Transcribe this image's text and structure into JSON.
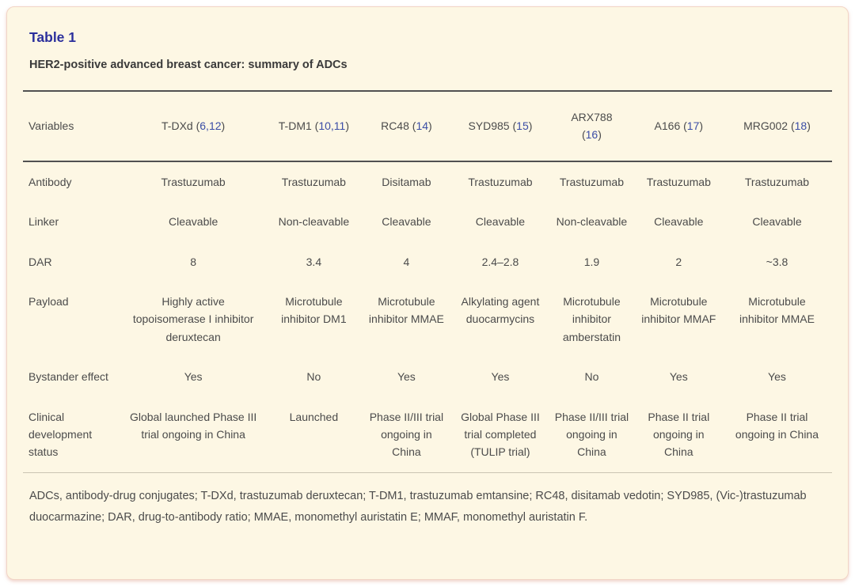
{
  "card": {
    "title": "Table 1",
    "subtitle": "HER2-positive advanced breast cancer: summary of ADCs",
    "footnote": "ADCs, antibody-drug conjugates; T-DXd, trastuzumab deruxtecan; T-DM1, trastuzumab emtansine; RC48, disitamab vedotin; SYD985, (Vic-)trastuzumab duocarmazine; DAR, drug-to-antibody ratio; MMAE, monomethyl auristatin E; MMAF, monomethyl auristatin F."
  },
  "colors": {
    "card_bg": "#fdf7e4",
    "card_border": "#f2d5c6",
    "title": "#2b2f9c",
    "link": "#3a4da6",
    "text": "#4b4b4b",
    "rule_dark": "#515151",
    "rule_light": "#cac4b3"
  },
  "table": {
    "header": [
      {
        "name": "Variables",
        "parts": [
          {
            "t": "Variables"
          }
        ]
      },
      {
        "name": "T-DXd",
        "parts": [
          {
            "t": "T-DXd ("
          },
          {
            "t": "6,12",
            "link": true
          },
          {
            "t": ")"
          }
        ]
      },
      {
        "name": "T-DM1",
        "parts": [
          {
            "t": "T-DM1 ("
          },
          {
            "t": "10,11",
            "link": true
          },
          {
            "t": ")"
          }
        ]
      },
      {
        "name": "RC48",
        "parts": [
          {
            "t": "RC48 ("
          },
          {
            "t": "14",
            "link": true
          },
          {
            "t": ")"
          }
        ]
      },
      {
        "name": "SYD985",
        "parts": [
          {
            "t": "SYD985 ("
          },
          {
            "t": "15",
            "link": true
          },
          {
            "t": ")"
          }
        ]
      },
      {
        "name": "ARX788",
        "parts": [
          {
            "t": "ARX788"
          },
          {
            "br": true
          },
          {
            "t": "("
          },
          {
            "t": "16",
            "link": true
          },
          {
            "t": ")"
          }
        ]
      },
      {
        "name": "A166",
        "parts": [
          {
            "t": "A166 ("
          },
          {
            "t": "17",
            "link": true
          },
          {
            "t": ")"
          }
        ]
      },
      {
        "name": "MRG002",
        "parts": [
          {
            "t": "MRG002 ("
          },
          {
            "t": "18",
            "link": true
          },
          {
            "t": ")"
          }
        ]
      }
    ],
    "rows": [
      {
        "label": "Antibody",
        "values": [
          "Trastuzumab",
          "Trastuzumab",
          "Disitamab",
          "Trastuzumab",
          "Trastuzumab",
          "Trastuzumab",
          "Trastuzumab"
        ]
      },
      {
        "label": "Linker",
        "values": [
          "Cleavable",
          "Non-cleavable",
          "Cleavable",
          "Cleavable",
          "Non-cleavable",
          "Cleavable",
          "Cleavable"
        ]
      },
      {
        "label": "DAR",
        "values": [
          "8",
          "3.4",
          "4",
          "2.4–2.8",
          "1.9",
          "2",
          "~3.8"
        ]
      },
      {
        "label": "Payload",
        "values": [
          "Highly active topoisomerase I inhibitor deruxtecan",
          "Microtubule inhibitor DM1",
          "Microtubule inhibitor MMAE",
          "Alkylating agent duocarmycins",
          "Microtubule inhibitor amberstatin",
          "Microtubule inhibitor MMAF",
          "Microtubule inhibitor MMAE"
        ]
      },
      {
        "label": "Bystander effect",
        "values": [
          "Yes",
          "No",
          "Yes",
          "Yes",
          "No",
          "Yes",
          "Yes"
        ]
      },
      {
        "label": "Clinical development status",
        "values": [
          "Global launched Phase III trial ongoing in China",
          "Launched",
          "Phase II/III trial ongoing in China",
          "Global Phase III trial completed (TULIP trial)",
          "Phase II/III trial ongoing in China",
          "Phase II trial ongoing in China",
          "Phase II trial ongoing in China"
        ]
      }
    ],
    "col_widths": [
      "11.9%",
      "18.3%",
      "11.5%",
      "11.4%",
      "11.8%",
      "10.8%",
      "10.7%",
      "13.6%"
    ]
  }
}
